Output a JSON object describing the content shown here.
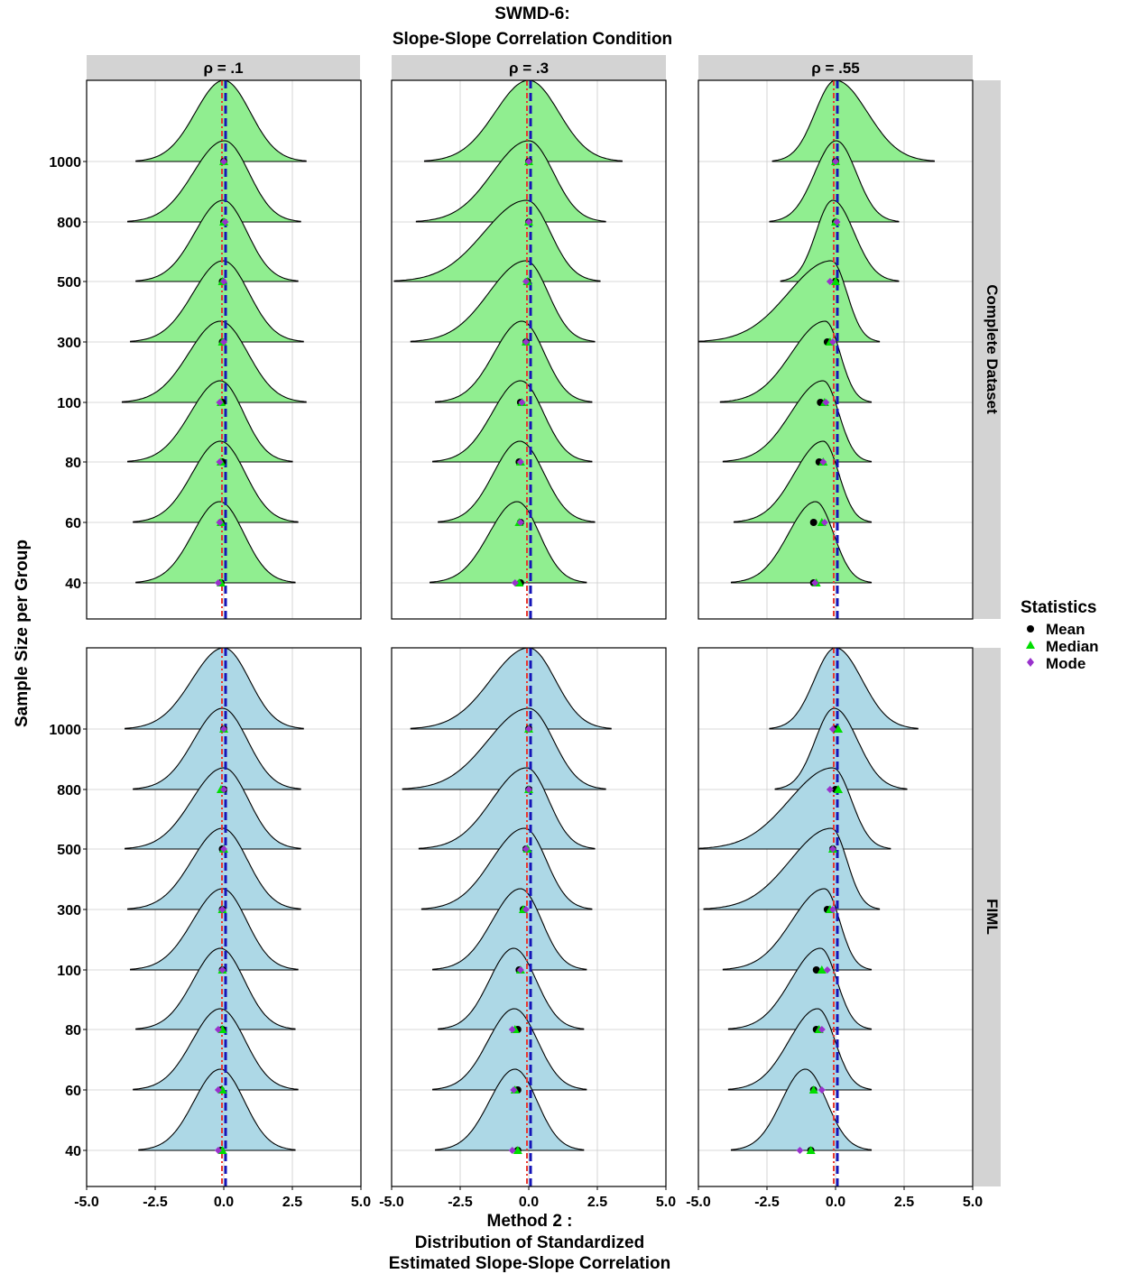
{
  "chart_data": {
    "type": "ridgeline",
    "title": [
      "SWMD-6:",
      "Slope-Slope Correlation Condition"
    ],
    "xlabel": [
      "Method 2 :",
      "Distribution of Standardized",
      "Estimated Slope-Slope Correlation"
    ],
    "ylabel": "Sample Size per Group",
    "columns": [
      "ρ = .1",
      "ρ = .3",
      "ρ = .55"
    ],
    "rows": [
      "Complete Dataset",
      "FIML"
    ],
    "x_ticks": [
      "-5.0",
      "-2.5",
      "0.0",
      "2.5",
      "5.0"
    ],
    "x_tick_values": [
      -5,
      -2.5,
      0,
      2.5,
      5
    ],
    "xlim": [
      -5,
      5
    ],
    "sample_sizes": [
      "40",
      "60",
      "80",
      "100",
      "300",
      "500",
      "800",
      "1000"
    ],
    "reference_lines": {
      "zero": 0
    },
    "fill_colors": {
      "Complete Dataset": "#90EE90",
      "FIML": "#ADD8E6"
    },
    "legend": {
      "title": "Statistics",
      "items": [
        {
          "label": "Mean",
          "color": "#000000",
          "shape": "circle"
        },
        {
          "label": "Median",
          "color": "#00DD00",
          "shape": "triangle"
        },
        {
          "label": "Mode",
          "color": "#9932CC",
          "shape": "diamond"
        }
      ]
    },
    "panels": [
      {
        "row": 0,
        "col": 0,
        "ridges": [
          {
            "range": [
              -3.2,
              2.6
            ],
            "mean": -0.1,
            "median": -0.1,
            "mode": -0.2
          },
          {
            "range": [
              -3.3,
              2.7
            ],
            "mean": -0.1,
            "median": -0.1,
            "mode": -0.15
          },
          {
            "range": [
              -3.5,
              2.5
            ],
            "mean": -0.05,
            "median": -0.1,
            "mode": -0.15
          },
          {
            "range": [
              -3.7,
              3.0
            ],
            "mean": -0.05,
            "median": -0.1,
            "mode": -0.15
          },
          {
            "range": [
              -3.4,
              2.9
            ],
            "mean": -0.05,
            "median": -0.05,
            "mode": 0.0
          },
          {
            "range": [
              -3.2,
              2.7
            ],
            "mean": -0.05,
            "median": -0.05,
            "mode": 0.0
          },
          {
            "range": [
              -3.5,
              2.8
            ],
            "mean": 0.0,
            "median": 0.0,
            "mode": 0.05
          },
          {
            "range": [
              -3.2,
              3.0
            ],
            "mean": 0.0,
            "median": 0.0,
            "mode": 0.0
          }
        ]
      },
      {
        "row": 0,
        "col": 1,
        "ridges": [
          {
            "range": [
              -3.6,
              2.1
            ],
            "mean": -0.3,
            "median": -0.35,
            "mode": -0.5
          },
          {
            "range": [
              -3.3,
              2.4
            ],
            "mean": -0.3,
            "median": -0.35,
            "mode": -0.3
          },
          {
            "range": [
              -3.5,
              2.3
            ],
            "mean": -0.35,
            "median": -0.3,
            "mode": -0.3
          },
          {
            "range": [
              -3.4,
              2.3
            ],
            "mean": -0.3,
            "median": -0.25,
            "mode": -0.25
          },
          {
            "range": [
              -4.3,
              2.4
            ],
            "mean": -0.1,
            "median": -0.1,
            "mode": -0.1
          },
          {
            "range": [
              -4.9,
              2.6
            ],
            "mean": -0.05,
            "median": -0.05,
            "mode": -0.1
          },
          {
            "range": [
              -4.1,
              2.8
            ],
            "mean": 0.0,
            "median": 0.0,
            "mode": 0.0
          },
          {
            "range": [
              -3.8,
              3.4
            ],
            "mean": 0.0,
            "median": 0.0,
            "mode": 0.0
          }
        ]
      },
      {
        "row": 0,
        "col": 2,
        "ridges": [
          {
            "range": [
              -3.8,
              1.3
            ],
            "mean": -0.8,
            "median": -0.7,
            "mode": -0.75
          },
          {
            "range": [
              -3.7,
              1.3
            ],
            "mean": -0.8,
            "median": -0.5,
            "mode": -0.4
          },
          {
            "range": [
              -4.1,
              1.3
            ],
            "mean": -0.6,
            "median": -0.45,
            "mode": -0.45
          },
          {
            "range": [
              -4.2,
              1.3
            ],
            "mean": -0.55,
            "median": -0.4,
            "mode": -0.35
          },
          {
            "range": [
              -5.0,
              1.6
            ],
            "mean": -0.3,
            "median": -0.2,
            "mode": -0.1
          },
          {
            "range": [
              -2.0,
              2.3
            ],
            "mean": 0.0,
            "median": 0.0,
            "mode": -0.2
          },
          {
            "range": [
              -2.4,
              2.3
            ],
            "mean": 0.0,
            "median": 0.0,
            "mode": 0.05
          },
          {
            "range": [
              -2.3,
              3.6
            ],
            "mean": 0.0,
            "median": 0.0,
            "mode": 0.0
          }
        ]
      },
      {
        "row": 1,
        "col": 0,
        "ridges": [
          {
            "range": [
              -3.1,
              2.6
            ],
            "mean": -0.1,
            "median": -0.05,
            "mode": -0.2
          },
          {
            "range": [
              -3.3,
              2.7
            ],
            "mean": -0.1,
            "median": -0.05,
            "mode": -0.2
          },
          {
            "range": [
              -3.2,
              2.6
            ],
            "mean": -0.05,
            "median": -0.05,
            "mode": -0.2
          },
          {
            "range": [
              -3.4,
              2.7
            ],
            "mean": -0.05,
            "median": -0.05,
            "mode": -0.05
          },
          {
            "range": [
              -3.5,
              2.8
            ],
            "mean": -0.05,
            "median": -0.05,
            "mode": -0.05
          },
          {
            "range": [
              -3.6,
              2.8
            ],
            "mean": -0.05,
            "median": 0.0,
            "mode": 0.0
          },
          {
            "range": [
              -3.3,
              2.8
            ],
            "mean": 0.0,
            "median": -0.1,
            "mode": 0.0
          },
          {
            "range": [
              -3.6,
              2.9
            ],
            "mean": 0.0,
            "median": 0.0,
            "mode": 0.0
          }
        ]
      },
      {
        "row": 1,
        "col": 1,
        "ridges": [
          {
            "range": [
              -3.4,
              2.0
            ],
            "mean": -0.4,
            "median": -0.4,
            "mode": -0.6
          },
          {
            "range": [
              -3.5,
              2.1
            ],
            "mean": -0.4,
            "median": -0.5,
            "mode": -0.55
          },
          {
            "range": [
              -3.3,
              2.0
            ],
            "mean": -0.4,
            "median": -0.5,
            "mode": -0.6
          },
          {
            "range": [
              -3.5,
              2.1
            ],
            "mean": -0.35,
            "median": -0.3,
            "mode": -0.3
          },
          {
            "range": [
              -3.9,
              2.3
            ],
            "mean": -0.2,
            "median": -0.2,
            "mode": -0.1
          },
          {
            "range": [
              -4.0,
              2.4
            ],
            "mean": -0.1,
            "median": -0.05,
            "mode": -0.1
          },
          {
            "range": [
              -4.6,
              2.8
            ],
            "mean": 0.0,
            "median": 0.0,
            "mode": 0.0
          },
          {
            "range": [
              -4.3,
              3.0
            ],
            "mean": 0.0,
            "median": 0.0,
            "mode": 0.0
          }
        ]
      },
      {
        "row": 1,
        "col": 2,
        "ridges": [
          {
            "range": [
              -3.8,
              1.3
            ],
            "mean": -0.9,
            "median": -0.9,
            "mode": -1.3
          },
          {
            "range": [
              -3.9,
              1.3
            ],
            "mean": -0.8,
            "median": -0.8,
            "mode": -0.5
          },
          {
            "range": [
              -3.9,
              1.3
            ],
            "mean": -0.7,
            "median": -0.6,
            "mode": -0.5
          },
          {
            "range": [
              -4.1,
              1.3
            ],
            "mean": -0.7,
            "median": -0.5,
            "mode": -0.3
          },
          {
            "range": [
              -4.8,
              1.6
            ],
            "mean": -0.3,
            "median": -0.2,
            "mode": -0.1
          },
          {
            "range": [
              -5.0,
              2.0
            ],
            "mean": -0.1,
            "median": -0.1,
            "mode": -0.1
          },
          {
            "range": [
              -2.2,
              2.6
            ],
            "mean": 0.0,
            "median": 0.1,
            "mode": -0.2
          },
          {
            "range": [
              -2.4,
              3.0
            ],
            "mean": 0.0,
            "median": 0.1,
            "mode": -0.1
          }
        ]
      }
    ]
  }
}
